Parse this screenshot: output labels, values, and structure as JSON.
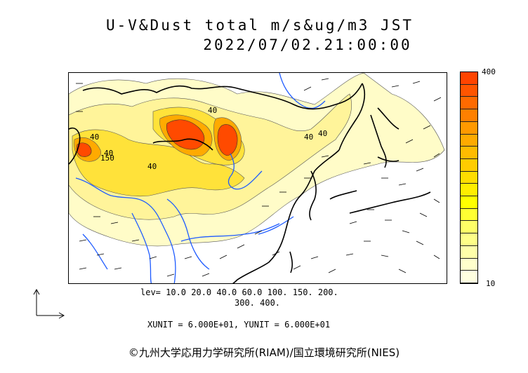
{
  "title": {
    "line1": "U-V&Dust total m/s&ug/m3 JST",
    "line2": "2022/07/02.21:00:00"
  },
  "map": {
    "contour_labels": [
      "40",
      "150",
      "40",
      "40",
      "40",
      "40",
      "40"
    ]
  },
  "colorbar": {
    "max_label": "400",
    "min_label": "10",
    "colors": [
      "#ff4400",
      "#ff5500",
      "#ff6a00",
      "#ff8000",
      "#ff9900",
      "#ffaa00",
      "#ffbb00",
      "#ffcc00",
      "#ffdd00",
      "#ffee00",
      "#ffff00",
      "#ffff33",
      "#ffff66",
      "#ffff88",
      "#ffffaa",
      "#ffffcc",
      "#ffffe0"
    ]
  },
  "levels": {
    "line1": "lev= 10.0 20.0 40.0 60.0 100. 150. 200.",
    "line2": "300. 400."
  },
  "units": "XUNIT = 6.000E+01, YUNIT = 6.000E+01",
  "copyright": "©九州大学応用力学研究所(RIAM)/国立環境研究所(NIES)"
}
